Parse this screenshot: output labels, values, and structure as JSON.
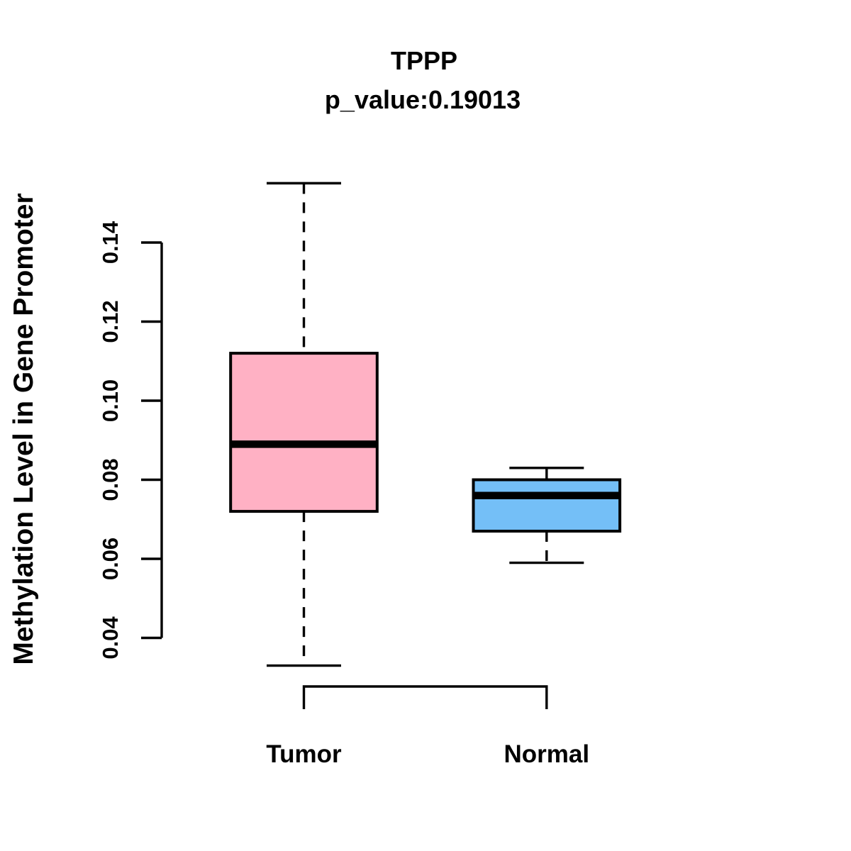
{
  "header": {
    "title": "TPPP",
    "subtitle": "p_value:0.19013"
  },
  "chart_data": {
    "type": "boxplot",
    "title": "TPPP",
    "subtitle": "p_value:0.19013",
    "xlabel": "",
    "ylabel": "Methylation Level in Gene Promoter",
    "y_axis_range": [
      0.04,
      0.14
    ],
    "y_ticks": [
      0.04,
      0.06,
      0.08,
      0.1,
      0.12,
      0.14
    ],
    "y_tick_labels": [
      "0.04",
      "0.06",
      "0.08",
      "0.10",
      "0.12",
      "0.14"
    ],
    "categories": [
      "Tumor",
      "Normal"
    ],
    "grid": false,
    "legend": false,
    "series": [
      {
        "name": "Tumor",
        "color": "#FFB1C4",
        "whisker_low": 0.033,
        "q1": 0.072,
        "median": 0.089,
        "q3": 0.112,
        "whisker_high": 0.155
      },
      {
        "name": "Normal",
        "color": "#74BFF7",
        "whisker_low": 0.059,
        "q1": 0.067,
        "median": 0.076,
        "q3": 0.08,
        "whisker_high": 0.083
      }
    ],
    "colors": {
      "box_border": "#000000",
      "median_line": "#000000",
      "whisker": "#000000",
      "axis": "#000000",
      "background": "#FFFFFF"
    }
  }
}
